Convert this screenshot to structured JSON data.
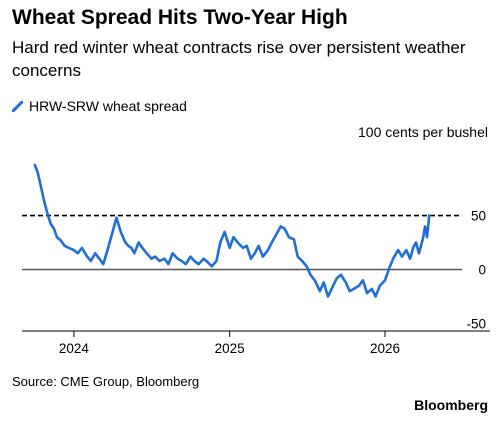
{
  "title": "Wheat Spread Hits Two-Year High",
  "subtitle": "Hard red winter wheat contracts rise over persistent weather concerns",
  "unit_label": "100 cents per bushel",
  "source": "Source: CME Group, Bloomberg",
  "brand": "Bloomberg",
  "colors": {
    "series": "#1f6fd6",
    "zero_line": "#555555",
    "reference_line": "#000000"
  },
  "chart_data": {
    "type": "line",
    "title": "Wheat Spread Hits Two-Year High",
    "ylabel": "100 cents per bushel",
    "xlim": [
      "2023-09-01",
      "2026-07-01"
    ],
    "ylim": [
      -57,
      108
    ],
    "yticks": [
      50,
      0,
      -50
    ],
    "xticks": [
      {
        "label": "2024",
        "date": "2024-01-01"
      },
      {
        "label": "2025",
        "date": "2025-01-01"
      },
      {
        "label": "2026",
        "date": "2026-01-01"
      }
    ],
    "reference_line": {
      "y": 50,
      "style": "dashed"
    },
    "zero_line": {
      "y": 0
    },
    "series": [
      {
        "name": "HRW-SRW wheat spread",
        "x": [
          "2023-10-01",
          "2023-10-08",
          "2023-10-15",
          "2023-10-22",
          "2023-11-01",
          "2023-11-08",
          "2023-11-15",
          "2023-11-22",
          "2023-12-01",
          "2023-12-10",
          "2023-12-20",
          "2024-01-01",
          "2024-01-10",
          "2024-01-20",
          "2024-02-01",
          "2024-02-10",
          "2024-02-20",
          "2024-03-01",
          "2024-03-10",
          "2024-03-20",
          "2024-04-01",
          "2024-04-10",
          "2024-04-20",
          "2024-05-01",
          "2024-05-08",
          "2024-05-15",
          "2024-05-22",
          "2024-06-01",
          "2024-06-10",
          "2024-06-20",
          "2024-07-01",
          "2024-07-10",
          "2024-07-20",
          "2024-08-01",
          "2024-08-10",
          "2024-08-20",
          "2024-09-01",
          "2024-09-10",
          "2024-09-20",
          "2024-10-01",
          "2024-10-10",
          "2024-10-20",
          "2024-11-01",
          "2024-11-10",
          "2024-11-20",
          "2024-12-01",
          "2024-12-10",
          "2024-12-20",
          "2025-01-01",
          "2025-01-10",
          "2025-01-20",
          "2025-02-01",
          "2025-02-10",
          "2025-02-20",
          "2025-03-01",
          "2025-03-10",
          "2025-03-20",
          "2025-04-01",
          "2025-04-10",
          "2025-04-20",
          "2025-05-01",
          "2025-05-10",
          "2025-05-20",
          "2025-06-01",
          "2025-06-10",
          "2025-06-20",
          "2025-07-01",
          "2025-07-10",
          "2025-07-20",
          "2025-08-01",
          "2025-08-10",
          "2025-08-20",
          "2025-09-01",
          "2025-09-10",
          "2025-09-20",
          "2025-10-01",
          "2025-10-10",
          "2025-10-20",
          "2025-11-01",
          "2025-11-10",
          "2025-11-20",
          "2025-12-01",
          "2025-12-10",
          "2025-12-20",
          "2026-01-01",
          "2026-01-10",
          "2026-01-20",
          "2026-02-01",
          "2026-02-10",
          "2026-02-20",
          "2026-03-01",
          "2026-03-08",
          "2026-03-15",
          "2026-03-22",
          "2026-04-01",
          "2026-04-05",
          "2026-04-10",
          "2026-04-15"
        ],
        "values": [
          97,
          90,
          78,
          65,
          50,
          42,
          38,
          30,
          27,
          22,
          20,
          18,
          15,
          20,
          12,
          8,
          15,
          10,
          5,
          18,
          35,
          48,
          35,
          25,
          22,
          20,
          15,
          25,
          20,
          15,
          10,
          12,
          8,
          10,
          5,
          15,
          10,
          8,
          5,
          12,
          8,
          5,
          10,
          7,
          3,
          8,
          25,
          35,
          20,
          30,
          25,
          20,
          22,
          10,
          15,
          22,
          12,
          18,
          25,
          32,
          40,
          38,
          30,
          28,
          12,
          8,
          3,
          -5,
          -10,
          -20,
          -12,
          -25,
          -15,
          -8,
          -5,
          -12,
          -20,
          -18,
          -15,
          -10,
          -22,
          -18,
          -25,
          -15,
          -10,
          0,
          10,
          18,
          12,
          18,
          10,
          20,
          25,
          15,
          30,
          40,
          30,
          50
        ]
      }
    ]
  }
}
